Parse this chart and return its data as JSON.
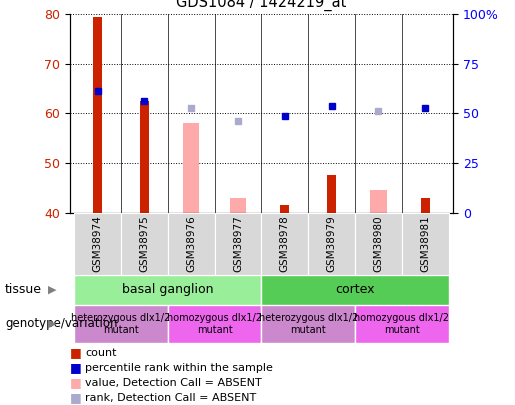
{
  "title": "GDS1084 / 1424219_at",
  "samples": [
    "GSM38974",
    "GSM38975",
    "GSM38976",
    "GSM38977",
    "GSM38978",
    "GSM38979",
    "GSM38980",
    "GSM38981"
  ],
  "ylim": [
    40,
    80
  ],
  "yticks_left": [
    40,
    50,
    60,
    70,
    80
  ],
  "yticks_right": [
    0,
    25,
    50,
    75,
    100
  ],
  "yright_labels": [
    "0",
    "25",
    "50",
    "75",
    "100%"
  ],
  "count_values": [
    79.5,
    62.5,
    null,
    null,
    41.5,
    47.5,
    null,
    43.0
  ],
  "rank_values": [
    64.5,
    62.5,
    null,
    null,
    59.5,
    61.5,
    null,
    61.0
  ],
  "value_absent": [
    null,
    null,
    58.0,
    43.0,
    null,
    null,
    44.5,
    null
  ],
  "rank_absent": [
    null,
    null,
    61.0,
    58.5,
    null,
    null,
    60.5,
    null
  ],
  "bar_bottom": 40,
  "count_color": "#cc2200",
  "rank_color": "#0000cc",
  "value_absent_color": "#ffaaaa",
  "rank_absent_color": "#aaaacc",
  "tissue_groups": [
    {
      "label": "basal ganglion",
      "start": 0,
      "end": 3,
      "color": "#99ee99"
    },
    {
      "label": "cortex",
      "start": 4,
      "end": 7,
      "color": "#55cc55"
    }
  ],
  "genotype_groups": [
    {
      "label": "heterozygous dlx1/2\nmutant",
      "start": 0,
      "end": 1,
      "color": "#cc88cc"
    },
    {
      "label": "homozygous dlx1/2\nmutant",
      "start": 2,
      "end": 3,
      "color": "#ee66ee"
    },
    {
      "label": "heterozygous dlx1/2\nmutant",
      "start": 4,
      "end": 5,
      "color": "#cc88cc"
    },
    {
      "label": "homozygous dlx1/2\nmutant",
      "start": 6,
      "end": 7,
      "color": "#ee66ee"
    }
  ],
  "legend_items": [
    {
      "label": "count",
      "color": "#cc2200"
    },
    {
      "label": "percentile rank within the sample",
      "color": "#0000cc"
    },
    {
      "label": "value, Detection Call = ABSENT",
      "color": "#ffaaaa"
    },
    {
      "label": "rank, Detection Call = ABSENT",
      "color": "#aaaacc"
    }
  ],
  "bar_width": 0.35,
  "fig_bg": "#ffffff",
  "plot_bg": "#ffffff"
}
